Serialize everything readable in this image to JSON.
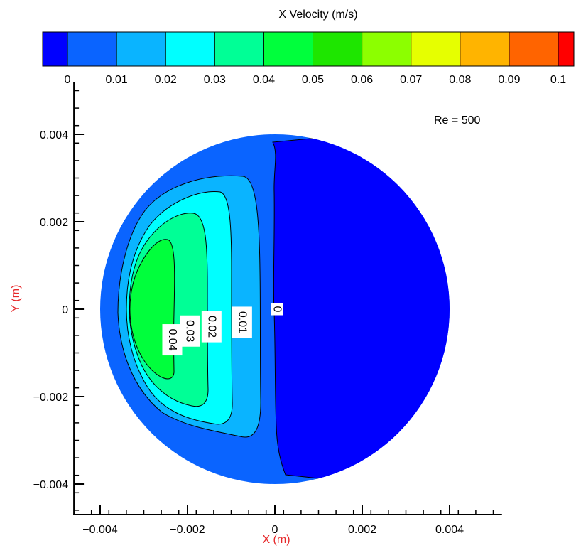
{
  "chart_data": {
    "type": "contour",
    "colorbar": {
      "title": "X Velocity (m/s)",
      "levels": [
        0,
        0.01,
        0.02,
        0.03,
        0.04,
        0.05,
        0.06,
        0.07,
        0.08,
        0.09,
        0.1
      ],
      "tick_labels": [
        "0",
        "0.01",
        "0.02",
        "0.03",
        "0.04",
        "0.05",
        "0.06",
        "0.07",
        "0.08",
        "0.09",
        "0.1"
      ],
      "colors": [
        "#0000ff",
        "#0a64ff",
        "#0ab4ff",
        "#00ffff",
        "#00ff96",
        "#00ff3c",
        "#1ee600",
        "#8cff00",
        "#e6ff00",
        "#ffb400",
        "#ff6400",
        "#ff0000"
      ]
    },
    "annotation": "Re = 500",
    "xlabel": "X (m)",
    "ylabel": "Y (m)",
    "label_color": "#e6282a",
    "xlim": [
      -0.0046,
      0.0052
    ],
    "ylim": [
      -0.0047,
      0.0052
    ],
    "x_ticks": [
      -0.004,
      -0.002,
      0,
      0.002,
      0.004
    ],
    "x_tick_labels": [
      "−0.004",
      "−0.002",
      "0",
      "0.002",
      "0.004"
    ],
    "y_ticks": [
      0.004,
      0.002,
      0,
      -0.002,
      -0.004
    ],
    "y_tick_labels": [
      "0.004",
      "0.002",
      "0",
      "−0.002",
      "−0.004"
    ],
    "domain": {
      "shape": "circle",
      "center": [
        0.0,
        0.0
      ],
      "radius": 0.004
    },
    "contour_labels": [
      {
        "text": "0",
        "x": 5e-05,
        "y": 0.0
      },
      {
        "text": "0.01",
        "x": -0.00075,
        "y": -0.0003
      },
      {
        "text": "0.02",
        "x": -0.00145,
        "y": -0.0004
      },
      {
        "text": "0.03",
        "x": -0.00195,
        "y": -0.0005
      },
      {
        "text": "0.04",
        "x": -0.00235,
        "y": -0.0007
      }
    ]
  }
}
